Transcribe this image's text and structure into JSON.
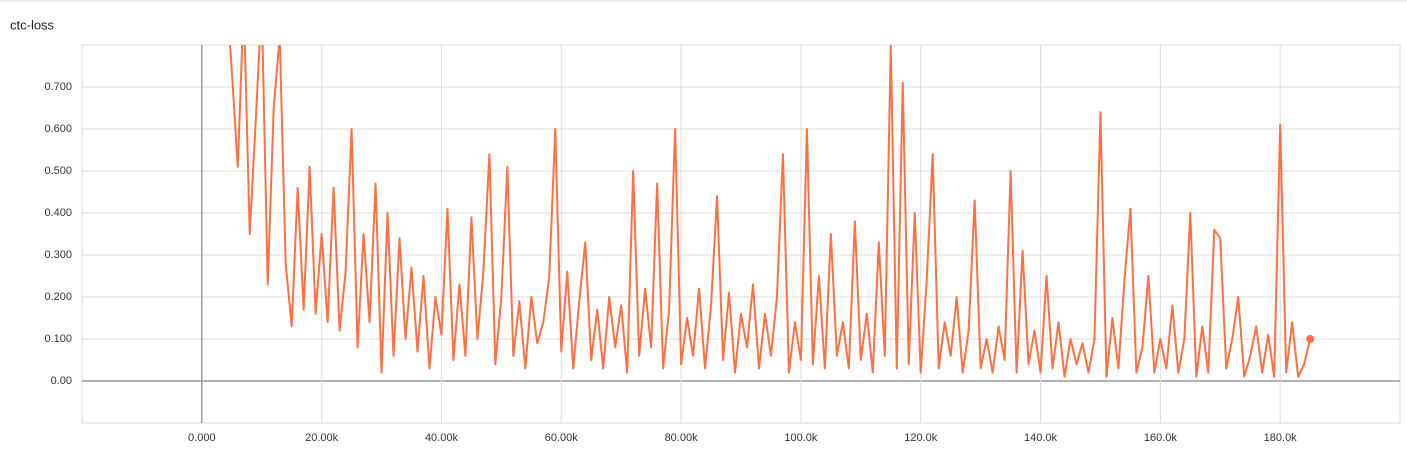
{
  "chart_data": {
    "type": "line",
    "title": "ctc-loss",
    "x": [
      4000,
      5000,
      6000,
      7000,
      8000,
      9000,
      10000,
      11000,
      12000,
      13000,
      14000,
      15000,
      16000,
      17000,
      18000,
      19000,
      20000,
      21000,
      22000,
      23000,
      24000,
      25000,
      26000,
      27000,
      28000,
      29000,
      30000,
      31000,
      32000,
      33000,
      34000,
      35000,
      36000,
      37000,
      38000,
      39000,
      40000,
      41000,
      42000,
      43000,
      44000,
      45000,
      46000,
      47000,
      48000,
      49000,
      50000,
      51000,
      52000,
      53000,
      54000,
      55000,
      56000,
      57000,
      58000,
      59000,
      60000,
      61000,
      62000,
      63000,
      64000,
      65000,
      66000,
      67000,
      68000,
      69000,
      70000,
      71000,
      72000,
      73000,
      74000,
      75000,
      76000,
      77000,
      78000,
      79000,
      80000,
      81000,
      82000,
      83000,
      84000,
      85000,
      86000,
      87000,
      88000,
      89000,
      90000,
      91000,
      92000,
      93000,
      94000,
      95000,
      96000,
      97000,
      98000,
      99000,
      100000,
      101000,
      102000,
      103000,
      104000,
      105000,
      106000,
      107000,
      108000,
      109000,
      110000,
      111000,
      112000,
      113000,
      114000,
      115000,
      116000,
      117000,
      118000,
      119000,
      120000,
      121000,
      122000,
      123000,
      124000,
      125000,
      126000,
      127000,
      128000,
      129000,
      130000,
      131000,
      132000,
      133000,
      134000,
      135000,
      136000,
      137000,
      138000,
      139000,
      140000,
      141000,
      142000,
      143000,
      144000,
      145000,
      146000,
      147000,
      148000,
      149000,
      150000,
      151000,
      152000,
      153000,
      154000,
      155000,
      156000,
      157000,
      158000,
      159000,
      160000,
      161000,
      162000,
      163000,
      164000,
      165000,
      166000,
      167000,
      168000,
      169000,
      170000,
      171000,
      172000,
      173000,
      174000,
      175000,
      176000,
      177000,
      178000,
      179000,
      180000,
      181000,
      182000,
      183000,
      184000,
      185000
    ],
    "series": [
      {
        "name": "ctc-loss",
        "color": "#ff7043",
        "values": [
          0.95,
          0.74,
          0.51,
          0.9,
          0.35,
          0.62,
          0.9,
          0.23,
          0.65,
          0.82,
          0.28,
          0.13,
          0.46,
          0.17,
          0.51,
          0.16,
          0.35,
          0.14,
          0.46,
          0.12,
          0.26,
          0.6,
          0.08,
          0.35,
          0.14,
          0.47,
          0.02,
          0.4,
          0.06,
          0.34,
          0.1,
          0.27,
          0.07,
          0.25,
          0.03,
          0.2,
          0.11,
          0.41,
          0.05,
          0.23,
          0.06,
          0.39,
          0.1,
          0.26,
          0.54,
          0.04,
          0.2,
          0.51,
          0.06,
          0.19,
          0.03,
          0.2,
          0.09,
          0.14,
          0.25,
          0.6,
          0.07,
          0.26,
          0.03,
          0.19,
          0.33,
          0.05,
          0.17,
          0.03,
          0.2,
          0.08,
          0.18,
          0.02,
          0.5,
          0.06,
          0.22,
          0.08,
          0.47,
          0.03,
          0.17,
          0.6,
          0.04,
          0.15,
          0.06,
          0.22,
          0.03,
          0.18,
          0.44,
          0.05,
          0.21,
          0.02,
          0.16,
          0.08,
          0.23,
          0.03,
          0.16,
          0.06,
          0.2,
          0.54,
          0.02,
          0.14,
          0.05,
          0.6,
          0.04,
          0.25,
          0.03,
          0.35,
          0.06,
          0.14,
          0.03,
          0.38,
          0.05,
          0.16,
          0.02,
          0.33,
          0.06,
          0.8,
          0.03,
          0.71,
          0.04,
          0.4,
          0.02,
          0.24,
          0.54,
          0.03,
          0.14,
          0.06,
          0.2,
          0.02,
          0.12,
          0.43,
          0.03,
          0.1,
          0.02,
          0.13,
          0.05,
          0.5,
          0.02,
          0.31,
          0.04,
          0.12,
          0.02,
          0.25,
          0.03,
          0.14,
          0.01,
          0.1,
          0.04,
          0.09,
          0.02,
          0.1,
          0.64,
          0.01,
          0.15,
          0.03,
          0.24,
          0.41,
          0.02,
          0.08,
          0.25,
          0.02,
          0.1,
          0.03,
          0.18,
          0.02,
          0.1,
          0.4,
          0.01,
          0.13,
          0.02,
          0.36,
          0.34,
          0.03,
          0.1,
          0.2,
          0.01,
          0.06,
          0.13,
          0.02,
          0.11,
          0.01,
          0.61,
          0.02,
          0.14,
          0.01,
          0.04,
          0.1
        ]
      }
    ],
    "xlim": [
      -20000,
      200000
    ],
    "ylim": [
      -0.1,
      0.8
    ],
    "xticks": [
      {
        "value": 0,
        "label": "0.000"
      },
      {
        "value": 20000,
        "label": "20.00k"
      },
      {
        "value": 40000,
        "label": "40.00k"
      },
      {
        "value": 60000,
        "label": "60.00k"
      },
      {
        "value": 80000,
        "label": "80.00k"
      },
      {
        "value": 100000,
        "label": "100.0k"
      },
      {
        "value": 120000,
        "label": "120.0k"
      },
      {
        "value": 140000,
        "label": "140.0k"
      },
      {
        "value": 160000,
        "label": "160.0k"
      },
      {
        "value": 180000,
        "label": "180.0k"
      }
    ],
    "yticks": [
      {
        "value": 0,
        "label": "0.00"
      },
      {
        "value": 0.1,
        "label": "0.100"
      },
      {
        "value": 0.2,
        "label": "0.200"
      },
      {
        "value": 0.3,
        "label": "0.300"
      },
      {
        "value": 0.4,
        "label": "0.400"
      },
      {
        "value": 0.5,
        "label": "0.500"
      },
      {
        "value": 0.6,
        "label": "0.600"
      },
      {
        "value": 0.7,
        "label": "0.700"
      }
    ],
    "grid": true
  }
}
